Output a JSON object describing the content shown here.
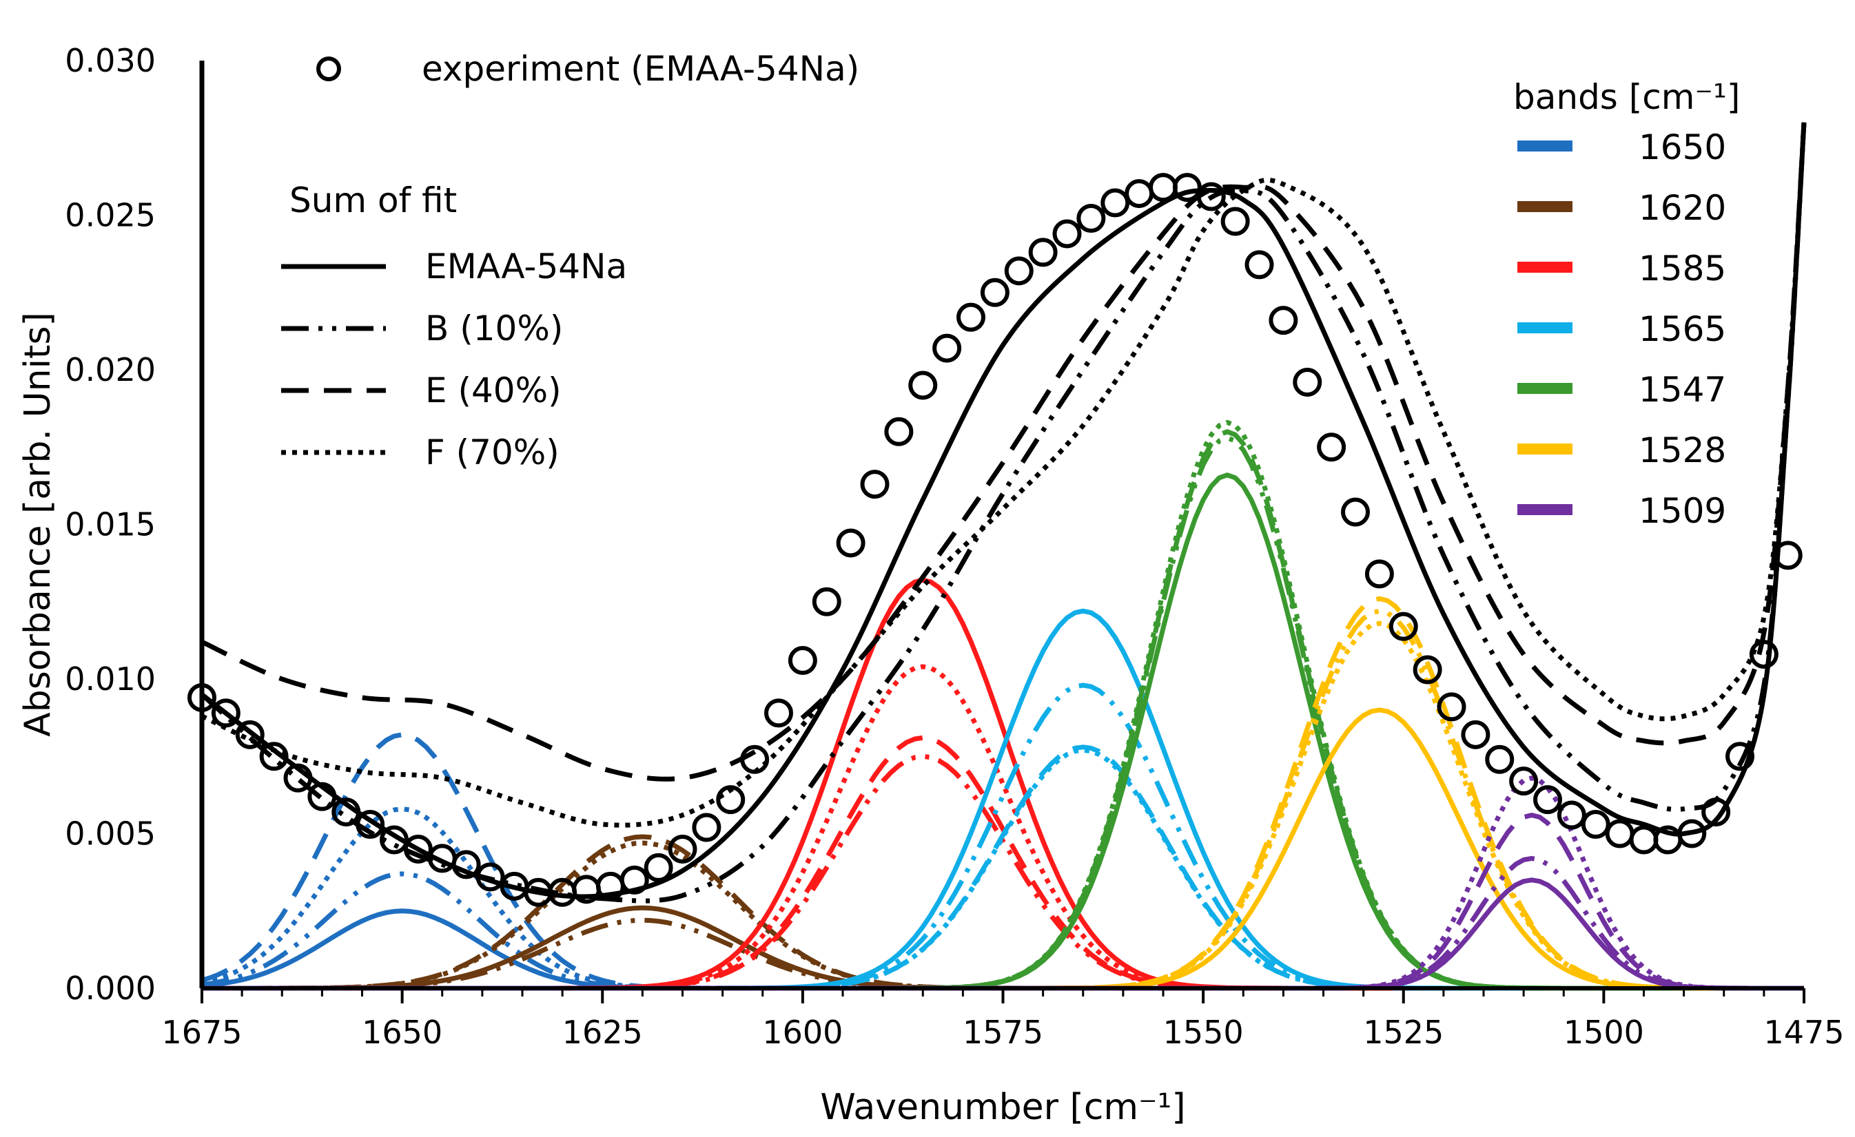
{
  "chart_data": {
    "type": "line",
    "title": "",
    "xlabel": "Wavenumber [cm⁻¹]",
    "ylabel": "Absorbance [arb. Units]",
    "xlim": [
      1675,
      1475
    ],
    "x_reversed": true,
    "ylim": [
      0,
      0.03
    ],
    "xticks": [
      1675,
      1650,
      1625,
      1600,
      1575,
      1550,
      1525,
      1500,
      1475
    ],
    "xtick_labels": [
      "1675",
      "1650",
      "1625",
      "1600",
      "1575",
      "1550",
      "1525",
      "1500",
      "1475"
    ],
    "yticks": [
      0,
      0.005,
      0.01,
      0.015,
      0.02,
      0.025,
      0.03
    ],
    "ytick_labels": [
      "0.000",
      "0.005",
      "0.010",
      "0.015",
      "0.020",
      "0.025",
      "0.030"
    ],
    "experiment": {
      "name": "experiment (EMAA-54Na)",
      "marker": "open-circle",
      "x": [
        1675,
        1672,
        1669,
        1666,
        1663,
        1660,
        1657,
        1654,
        1651,
        1648,
        1645,
        1642,
        1639,
        1636,
        1633,
        1630,
        1627,
        1624,
        1621,
        1618,
        1615,
        1612,
        1609,
        1606,
        1603,
        1600,
        1597,
        1594,
        1591,
        1588,
        1585,
        1582,
        1579,
        1576,
        1573,
        1570,
        1567,
        1564,
        1561,
        1558,
        1555,
        1552,
        1549,
        1546,
        1543,
        1540,
        1537,
        1534,
        1531,
        1528,
        1525,
        1522,
        1519,
        1516,
        1513,
        1510,
        1507,
        1504,
        1501,
        1498,
        1495,
        1492,
        1489,
        1486,
        1483,
        1480,
        1477
      ],
      "y": [
        0.0094,
        0.0089,
        0.0082,
        0.0075,
        0.0068,
        0.0062,
        0.0057,
        0.0053,
        0.0048,
        0.0045,
        0.0042,
        0.004,
        0.0036,
        0.0033,
        0.0031,
        0.0031,
        0.0032,
        0.0033,
        0.0035,
        0.0039,
        0.0045,
        0.0052,
        0.0061,
        0.0074,
        0.0089,
        0.0106,
        0.0125,
        0.0144,
        0.0163,
        0.018,
        0.0195,
        0.0207,
        0.0217,
        0.0225,
        0.0232,
        0.0238,
        0.0244,
        0.0249,
        0.0254,
        0.0257,
        0.0259,
        0.0259,
        0.0256,
        0.0248,
        0.0234,
        0.0216,
        0.0196,
        0.0175,
        0.0154,
        0.0134,
        0.0117,
        0.0103,
        0.0091,
        0.0082,
        0.0074,
        0.0067,
        0.0061,
        0.0056,
        0.0053,
        0.005,
        0.0048,
        0.0048,
        0.005,
        0.0057,
        0.0075,
        0.0108,
        0.014
      ]
    },
    "sum_of_fit_header": "Sum of fit",
    "sum_of_fit": [
      {
        "name": "EMAA-54Na",
        "dash": "solid",
        "x": [
          1675,
          1665,
          1655,
          1645,
          1635,
          1625,
          1615,
          1605,
          1595,
          1585,
          1575,
          1565,
          1555,
          1550,
          1545,
          1540,
          1530,
          1520,
          1510,
          1500,
          1495,
          1490,
          1485,
          1480,
          1477,
          1475
        ],
        "y": [
          0.0095,
          0.0075,
          0.0056,
          0.0041,
          0.0032,
          0.003,
          0.0038,
          0.0062,
          0.0103,
          0.0158,
          0.0208,
          0.0236,
          0.0254,
          0.0258,
          0.0255,
          0.024,
          0.0183,
          0.0121,
          0.0078,
          0.0058,
          0.0053,
          0.005,
          0.0058,
          0.0095,
          0.019,
          0.028
        ]
      },
      {
        "name": "B (10%)",
        "dash": "dash-dot-dot",
        "x": [
          1675,
          1665,
          1655,
          1645,
          1635,
          1625,
          1615,
          1605,
          1595,
          1585,
          1575,
          1565,
          1555,
          1550,
          1545,
          1540,
          1530,
          1520,
          1510,
          1500,
          1495,
          1490,
          1485,
          1480,
          1477,
          1475
        ],
        "y": [
          0.0095,
          0.0072,
          0.0052,
          0.004,
          0.0033,
          0.0029,
          0.003,
          0.0046,
          0.008,
          0.0116,
          0.016,
          0.02,
          0.0238,
          0.0254,
          0.0258,
          0.025,
          0.0205,
          0.014,
          0.0092,
          0.0066,
          0.006,
          0.0058,
          0.0064,
          0.0098,
          0.019,
          0.028
        ]
      },
      {
        "name": "E (40%)",
        "dash": "dash",
        "x": [
          1675,
          1665,
          1655,
          1645,
          1635,
          1625,
          1615,
          1605,
          1595,
          1585,
          1575,
          1565,
          1555,
          1550,
          1545,
          1540,
          1530,
          1520,
          1510,
          1500,
          1495,
          1490,
          1485,
          1480,
          1477,
          1475
        ],
        "y": [
          0.0112,
          0.01,
          0.0094,
          0.0092,
          0.0082,
          0.0071,
          0.0068,
          0.0078,
          0.01,
          0.0133,
          0.017,
          0.021,
          0.0244,
          0.0257,
          0.0259,
          0.0255,
          0.022,
          0.0157,
          0.0108,
          0.0085,
          0.008,
          0.008,
          0.0086,
          0.0115,
          0.0195,
          0.028
        ]
      },
      {
        "name": "F (70%)",
        "dash": "dot",
        "x": [
          1675,
          1665,
          1655,
          1645,
          1635,
          1625,
          1615,
          1605,
          1595,
          1585,
          1575,
          1565,
          1555,
          1550,
          1545,
          1540,
          1530,
          1520,
          1510,
          1500,
          1495,
          1490,
          1485,
          1480,
          1477,
          1475
        ],
        "y": [
          0.0088,
          0.0076,
          0.007,
          0.0068,
          0.006,
          0.0053,
          0.0056,
          0.0072,
          0.01,
          0.013,
          0.0155,
          0.0182,
          0.022,
          0.0245,
          0.0258,
          0.026,
          0.024,
          0.018,
          0.0122,
          0.0095,
          0.0088,
          0.0088,
          0.0095,
          0.012,
          0.0195,
          0.028
        ]
      }
    ],
    "bands_title": "bands [cm⁻¹]",
    "bands": [
      {
        "label": "1650",
        "color": "#1f6fc1",
        "center": 1650,
        "width": 9.5,
        "heights": {
          "EMAA-54Na": 0.0025,
          "B (10%)": 0.0037,
          "E (40%)": 0.0082,
          "F (70%)": 0.0058
        }
      },
      {
        "label": "1620",
        "color": "#6b3a10",
        "center": 1620,
        "width": 11.5,
        "heights": {
          "EMAA-54Na": 0.0026,
          "B (10%)": 0.0022,
          "E (40%)": 0.0049,
          "F (70%)": 0.0047
        }
      },
      {
        "label": "1585",
        "color": "#ff1a1a",
        "center": 1585,
        "width": 10.5,
        "heights": {
          "EMAA-54Na": 0.0132,
          "B (10%)": 0.0075,
          "E (40%)": 0.0081,
          "F (70%)": 0.0104
        }
      },
      {
        "label": "1565",
        "color": "#10aee8",
        "center": 1565,
        "width": 10.5,
        "heights": {
          "EMAA-54Na": 0.0122,
          "B (10%)": 0.0098,
          "E (40%)": 0.0078,
          "F (70%)": 0.0077
        }
      },
      {
        "label": "1547",
        "color": "#3a9a2f",
        "center": 1547,
        "width": 9.5,
        "heights": {
          "EMAA-54Na": 0.0166,
          "B (10%)": 0.0178,
          "E (40%)": 0.018,
          "F (70%)": 0.0183
        }
      },
      {
        "label": "1528",
        "color": "#ffc000",
        "center": 1528,
        "width": 10.0,
        "heights": {
          "EMAA-54Na": 0.009,
          "B (10%)": 0.0122,
          "E (40%)": 0.0126,
          "F (70%)": 0.0118
        }
      },
      {
        "label": "1509",
        "color": "#7030a0",
        "center": 1509,
        "width": 6.5,
        "heights": {
          "EMAA-54Na": 0.0035,
          "B (10%)": 0.0042,
          "E (40%)": 0.0056,
          "F (70%)": 0.0068
        }
      }
    ]
  }
}
